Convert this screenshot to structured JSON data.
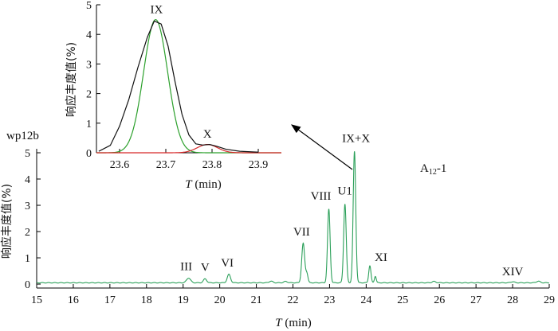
{
  "chart_data": [
    {
      "type": "line",
      "role": "main",
      "sample_label": "wp12b",
      "annotation_right": "A₁₂-1",
      "xlabel": "T (min)",
      "ylabel": "响应丰度值(%)",
      "xlim": [
        15,
        29
      ],
      "ylim": [
        -0.15,
        5
      ],
      "xticks": [
        15,
        16,
        17,
        18,
        19,
        20,
        21,
        22,
        23,
        24,
        25,
        26,
        27,
        28,
        29
      ],
      "yticks": [
        0,
        1,
        2,
        3,
        4,
        5
      ],
      "line_color": "#2ca05a",
      "baseline": 0.05,
      "peaks": [
        {
          "label": "III",
          "x": 19.15,
          "y": 0.18,
          "w": 0.055
        },
        {
          "label": "V",
          "x": 19.6,
          "y": 0.15,
          "w": 0.045
        },
        {
          "label": "VI",
          "x": 20.25,
          "y": 0.32,
          "w": 0.045
        },
        {
          "label": "VII",
          "x": 22.28,
          "y": 1.5,
          "w": 0.04
        },
        {
          "label": "VIII",
          "x": 22.98,
          "y": 2.8,
          "w": 0.035
        },
        {
          "label": "U1",
          "x": 23.42,
          "y": 3.0,
          "w": 0.035
        },
        {
          "label": "IX+X",
          "x": 23.68,
          "y": 5.0,
          "w": 0.035
        },
        {
          "label": "XI",
          "x": 24.1,
          "y": 0.65,
          "w": 0.03
        },
        {
          "label": "XIV",
          "x": 28.0,
          "y": 0.04,
          "w": 0.05
        }
      ],
      "minor_peaks": [
        {
          "x": 22.38,
          "y": 0.35,
          "w": 0.03
        },
        {
          "x": 24.25,
          "y": 0.25,
          "w": 0.025
        },
        {
          "x": 21.4,
          "y": 0.06,
          "w": 0.05
        },
        {
          "x": 21.8,
          "y": 0.05,
          "w": 0.05
        },
        {
          "x": 25.85,
          "y": 0.05,
          "w": 0.05
        },
        {
          "x": 28.7,
          "y": 0.06,
          "w": 0.05
        }
      ]
    },
    {
      "type": "line",
      "role": "inset",
      "xlabel": "T (min)",
      "ylabel": "响应丰度值(%)",
      "xlim": [
        23.55,
        23.95
      ],
      "ylim": [
        0,
        5
      ],
      "xticks": [
        23.6,
        23.7,
        23.8,
        23.9
      ],
      "yticks": [
        0,
        1,
        2,
        3,
        4,
        5
      ],
      "peak_labels": [
        {
          "label": "IX",
          "x": 23.68,
          "y": 4.5
        },
        {
          "label": "X",
          "x": 23.79,
          "y": 0.3
        }
      ],
      "series": [
        {
          "name": "",
          "color": "#111111",
          "points": [
            [
              23.555,
              0.05
            ],
            [
              23.58,
              0.25
            ],
            [
              23.6,
              0.9
            ],
            [
              23.62,
              1.8
            ],
            [
              23.64,
              2.9
            ],
            [
              23.66,
              3.9
            ],
            [
              23.675,
              4.45
            ],
            [
              23.69,
              4.35
            ],
            [
              23.705,
              3.6
            ],
            [
              23.72,
              2.4
            ],
            [
              23.735,
              1.3
            ],
            [
              23.75,
              0.6
            ],
            [
              23.765,
              0.3
            ],
            [
              23.78,
              0.26
            ],
            [
              23.795,
              0.28
            ],
            [
              23.81,
              0.22
            ],
            [
              23.83,
              0.12
            ],
            [
              23.86,
              0.05
            ],
            [
              23.9,
              0.02
            ]
          ]
        },
        {
          "name": "",
          "color": "#2ca02c",
          "gauss": [
            {
              "a": 4.5,
              "mu": 23.678,
              "s": 0.026
            }
          ]
        },
        {
          "name": "",
          "color": "#d62728",
          "gauss": [
            {
              "a": 0.28,
              "mu": 23.79,
              "s": 0.022
            }
          ]
        }
      ]
    }
  ]
}
